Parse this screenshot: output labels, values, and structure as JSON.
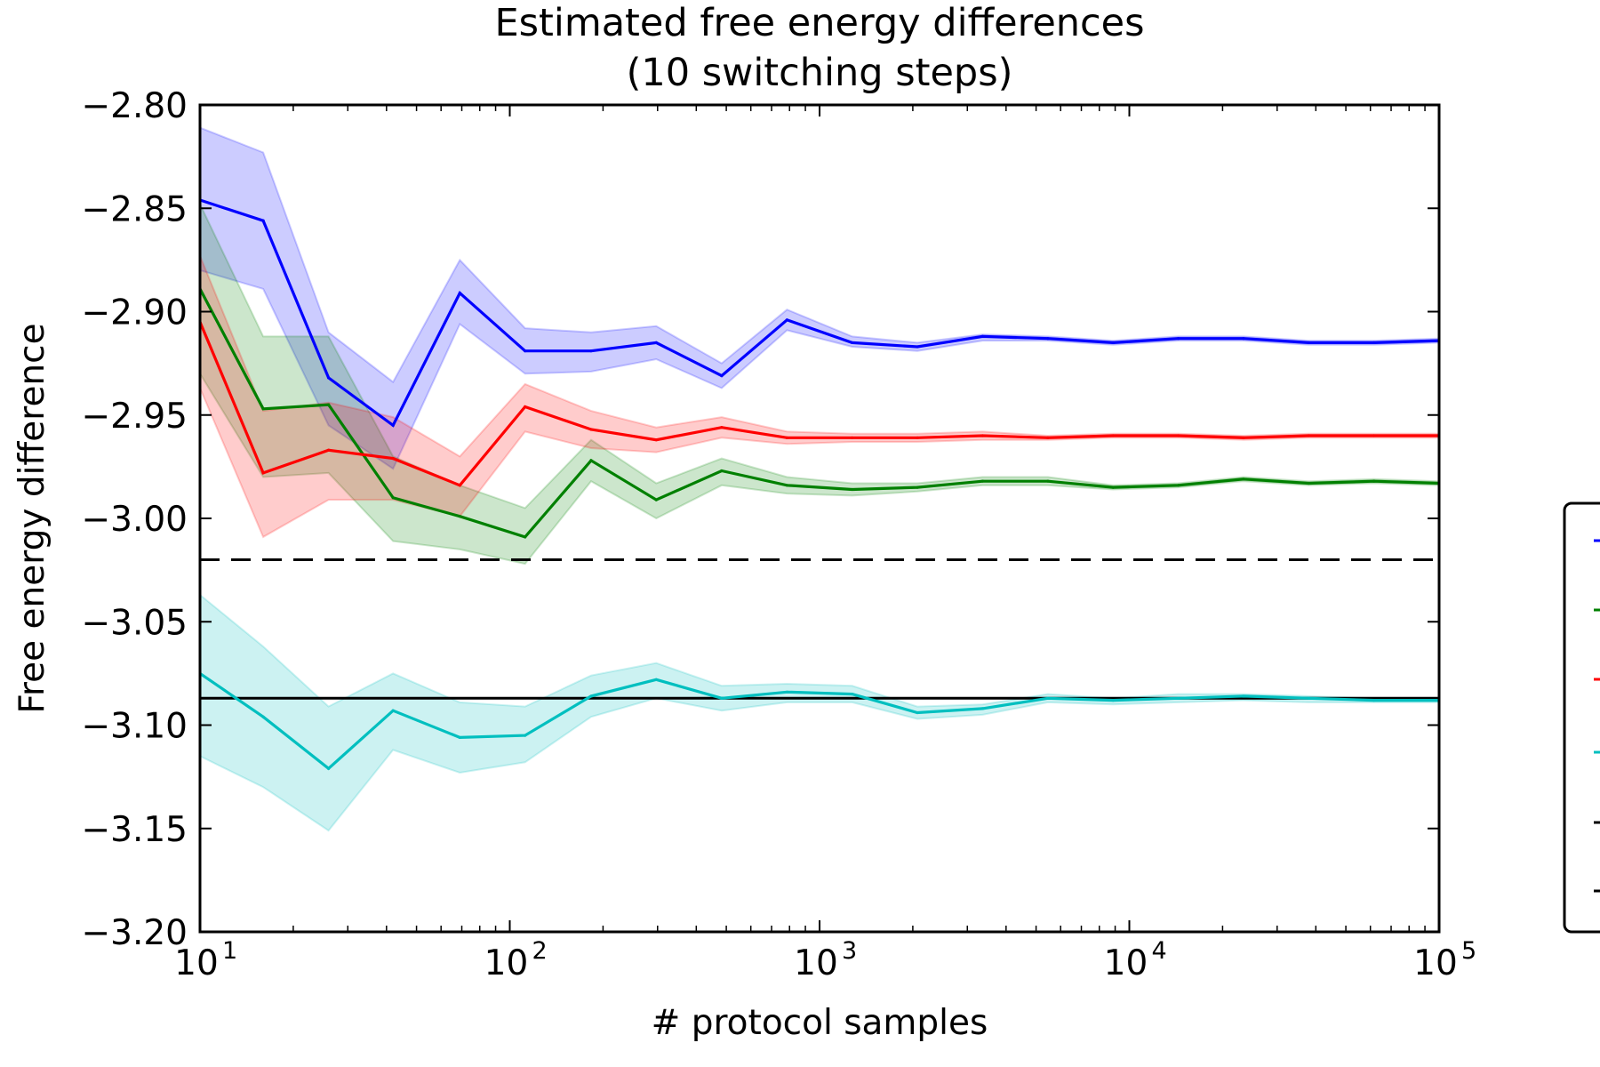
{
  "chart_data": {
    "type": "line",
    "title": "Estimated free energy differences",
    "subtitle": "(10 switching steps)",
    "xlabel": "# protocol samples",
    "ylabel": "Free energy difference",
    "xscale": "log",
    "xlim": [
      10,
      100000
    ],
    "ylim": [
      -3.2,
      -2.8
    ],
    "x_ticks": [
      {
        "base": "10",
        "exp": "1",
        "value": 10
      },
      {
        "base": "10",
        "exp": "2",
        "value": 100
      },
      {
        "base": "10",
        "exp": "3",
        "value": 1000
      },
      {
        "base": "10",
        "exp": "4",
        "value": 10000
      },
      {
        "base": "10",
        "exp": "5",
        "value": 100000
      }
    ],
    "y_ticks": [
      {
        "label": "−2.80",
        "value": -2.8
      },
      {
        "label": "−2.85",
        "value": -2.85
      },
      {
        "label": "−2.90",
        "value": -2.9
      },
      {
        "label": "−2.95",
        "value": -2.95
      },
      {
        "label": "−3.00",
        "value": -3.0
      },
      {
        "label": "−3.05",
        "value": -3.05
      },
      {
        "label": "−3.10",
        "value": -3.1
      },
      {
        "label": "−3.15",
        "value": -3.15
      },
      {
        "label": "−3.20",
        "value": -3.2
      }
    ],
    "grid": false,
    "legend_position": "right (outside plot, clipped)",
    "x": [
      10,
      16,
      26,
      42,
      69,
      112,
      183,
      297,
      483,
      785,
      1274,
      2069,
      3360,
      5456,
      8859,
      14384,
      23357,
      37927,
      61585,
      100000
    ],
    "series": [
      {
        "color": "#0000ff",
        "values": [
          -2.846,
          -2.856,
          -2.932,
          -2.955,
          -2.891,
          -2.919,
          -2.919,
          -2.915,
          -2.931,
          -2.904,
          -2.915,
          -2.917,
          -2.912,
          -2.913,
          -2.915,
          -2.913,
          -2.913,
          -2.915,
          -2.915,
          -2.914
        ],
        "lower": [
          -2.88,
          -2.889,
          -2.955,
          -2.976,
          -2.906,
          -2.93,
          -2.929,
          -2.923,
          -2.937,
          -2.909,
          -2.917,
          -2.919,
          -2.914,
          -2.914,
          -2.916,
          -2.914,
          -2.914,
          -2.916,
          -2.916,
          -2.915
        ],
        "upper": [
          -2.811,
          -2.823,
          -2.91,
          -2.934,
          -2.875,
          -2.908,
          -2.91,
          -2.907,
          -2.925,
          -2.899,
          -2.912,
          -2.915,
          -2.911,
          -2.912,
          -2.914,
          -2.912,
          -2.912,
          -2.914,
          -2.914,
          -2.913
        ]
      },
      {
        "color": "#008000",
        "values": [
          -2.889,
          -2.947,
          -2.945,
          -2.99,
          -2.999,
          -3.009,
          -2.972,
          -2.991,
          -2.977,
          -2.984,
          -2.986,
          -2.985,
          -2.982,
          -2.982,
          -2.985,
          -2.984,
          -2.981,
          -2.983,
          -2.982,
          -2.983
        ],
        "lower": [
          -2.93,
          -2.98,
          -2.978,
          -3.011,
          -3.015,
          -3.022,
          -2.982,
          -3.0,
          -2.984,
          -2.988,
          -2.989,
          -2.987,
          -2.984,
          -2.984,
          -2.986,
          -2.985,
          -2.982,
          -2.984,
          -2.983,
          -2.984
        ],
        "upper": [
          -2.848,
          -2.912,
          -2.912,
          -2.97,
          -2.984,
          -2.995,
          -2.962,
          -2.983,
          -2.971,
          -2.98,
          -2.983,
          -2.983,
          -2.98,
          -2.98,
          -2.984,
          -2.983,
          -2.98,
          -2.982,
          -2.981,
          -2.982
        ]
      },
      {
        "color": "#ff0000",
        "values": [
          -2.905,
          -2.978,
          -2.967,
          -2.971,
          -2.984,
          -2.946,
          -2.957,
          -2.962,
          -2.956,
          -2.961,
          -2.961,
          -2.961,
          -2.96,
          -2.961,
          -2.96,
          -2.96,
          -2.961,
          -2.96,
          -2.96,
          -2.96
        ],
        "lower": [
          -2.937,
          -3.009,
          -2.991,
          -2.991,
          -2.999,
          -2.958,
          -2.966,
          -2.968,
          -2.961,
          -2.964,
          -2.963,
          -2.963,
          -2.962,
          -2.962,
          -2.961,
          -2.961,
          -2.962,
          -2.961,
          -2.961,
          -2.961
        ],
        "upper": [
          -2.873,
          -2.948,
          -2.944,
          -2.951,
          -2.97,
          -2.935,
          -2.948,
          -2.956,
          -2.951,
          -2.958,
          -2.959,
          -2.959,
          -2.958,
          -2.96,
          -2.959,
          -2.959,
          -2.96,
          -2.959,
          -2.959,
          -2.959
        ]
      },
      {
        "color": "#00bfbf",
        "values": [
          -3.075,
          -3.096,
          -3.121,
          -3.093,
          -3.106,
          -3.105,
          -3.086,
          -3.078,
          -3.087,
          -3.084,
          -3.085,
          -3.094,
          -3.092,
          -3.087,
          -3.088,
          -3.087,
          -3.086,
          -3.087,
          -3.088,
          -3.088
        ],
        "lower": [
          -3.115,
          -3.13,
          -3.151,
          -3.112,
          -3.123,
          -3.118,
          -3.096,
          -3.087,
          -3.093,
          -3.089,
          -3.089,
          -3.097,
          -3.095,
          -3.089,
          -3.09,
          -3.089,
          -3.088,
          -3.089,
          -3.089,
          -3.089
        ],
        "upper": [
          -3.037,
          -3.062,
          -3.091,
          -3.075,
          -3.089,
          -3.091,
          -3.076,
          -3.07,
          -3.081,
          -3.08,
          -3.081,
          -3.091,
          -3.09,
          -3.085,
          -3.087,
          -3.085,
          -3.085,
          -3.086,
          -3.087,
          -3.087
        ]
      }
    ],
    "reference_lines": [
      {
        "y": -3.02,
        "style": "dashed",
        "color": "#000000"
      },
      {
        "y": -3.087,
        "style": "solid",
        "color": "#000000"
      }
    ],
    "legend_swatches": [
      {
        "color": "#0000ff",
        "style": "solid"
      },
      {
        "color": "#008000",
        "style": "solid"
      },
      {
        "color": "#ff0000",
        "style": "solid"
      },
      {
        "color": "#00bfbf",
        "style": "solid"
      },
      {
        "color": "#000000",
        "style": "dashed"
      },
      {
        "color": "#000000",
        "style": "solid"
      }
    ]
  }
}
